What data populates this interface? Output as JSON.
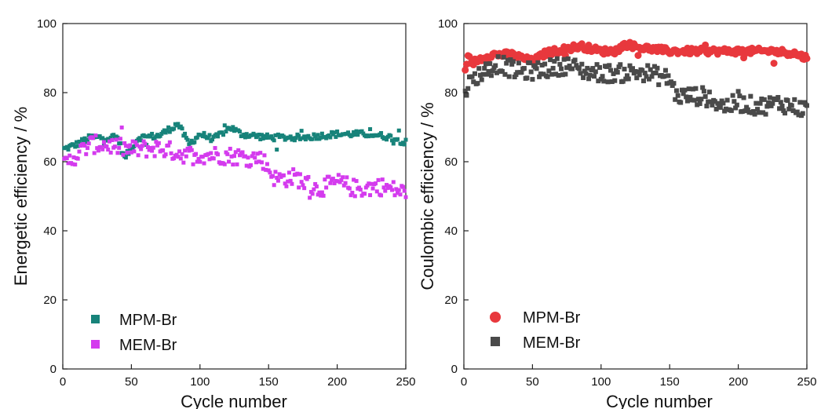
{
  "chart_data": [
    {
      "type": "scatter",
      "title": "",
      "xlabel": "Cycle number",
      "ylabel": "Energetic efficiency / %",
      "xlim": [
        0,
        250
      ],
      "ylim": [
        0,
        100
      ],
      "xticks": [
        "0",
        "50",
        "100",
        "150",
        "200",
        "250"
      ],
      "yticks": [
        "0",
        "20",
        "40",
        "60",
        "80",
        "100"
      ],
      "grid": false,
      "legend_position": "bottom-left",
      "series": [
        {
          "name": "MPM-Br",
          "color": "#17837A",
          "marker": "square",
          "anchors": [
            [
              0,
              63.5
            ],
            [
              10,
              65
            ],
            [
              20,
              67
            ],
            [
              40,
              67
            ],
            [
              45,
              61
            ],
            [
              50,
              64
            ],
            [
              55,
              67
            ],
            [
              70,
              67.5
            ],
            [
              84,
              71
            ],
            [
              92,
              65
            ],
            [
              100,
              68
            ],
            [
              110,
              66.5
            ],
            [
              122,
              70
            ],
            [
              130,
              68
            ],
            [
              150,
              67
            ],
            [
              175,
              67
            ],
            [
              200,
              68
            ],
            [
              225,
              68
            ],
            [
              240,
              67
            ],
            [
              250,
              65.5
            ]
          ]
        },
        {
          "name": "MEM-Br",
          "color": "#D43BEE",
          "marker": "square",
          "anchors": [
            [
              0,
              58.5
            ],
            [
              10,
              62
            ],
            [
              20,
              65
            ],
            [
              30,
              65
            ],
            [
              50,
              63.5
            ],
            [
              70,
              64
            ],
            [
              90,
              62
            ],
            [
              110,
              62
            ],
            [
              130,
              61.5
            ],
            [
              145,
              61
            ],
            [
              155,
              55
            ],
            [
              170,
              55.5
            ],
            [
              185,
              52
            ],
            [
              200,
              54
            ],
            [
              215,
              52
            ],
            [
              230,
              53
            ],
            [
              250,
              51
            ]
          ]
        }
      ]
    },
    {
      "type": "scatter",
      "title": "",
      "xlabel": "Cycle number",
      "ylabel": "Coulombic efficiency / %",
      "xlim": [
        0,
        250
      ],
      "ylim": [
        0,
        100
      ],
      "xticks": [
        "0",
        "50",
        "100",
        "150",
        "200",
        "250"
      ],
      "yticks": [
        "0",
        "20",
        "40",
        "60",
        "80",
        "100"
      ],
      "grid": false,
      "legend_position": "bottom-left",
      "series": [
        {
          "name": "MPM-Br",
          "color": "#E8383D",
          "marker": "circle",
          "anchors": [
            [
              0,
              87
            ],
            [
              10,
              89.5
            ],
            [
              20,
              91
            ],
            [
              35,
              91
            ],
            [
              50,
              89
            ],
            [
              60,
              91.5
            ],
            [
              85,
              93.5
            ],
            [
              100,
              92
            ],
            [
              110,
              92
            ],
            [
              118,
              94
            ],
            [
              130,
              93
            ],
            [
              150,
              92
            ],
            [
              175,
              92
            ],
            [
              200,
              92
            ],
            [
              225,
              92
            ],
            [
              240,
              91.5
            ],
            [
              250,
              90
            ]
          ]
        },
        {
          "name": "MEM-Br",
          "color": "#4A4A4A",
          "marker": "square",
          "anchors": [
            [
              0,
              81
            ],
            [
              10,
              85
            ],
            [
              25,
              88.5
            ],
            [
              40,
              86
            ],
            [
              55,
              86.5
            ],
            [
              75,
              88
            ],
            [
              90,
              86
            ],
            [
              110,
              85.5
            ],
            [
              130,
              86
            ],
            [
              150,
              84
            ],
            [
              155,
              79
            ],
            [
              175,
              79
            ],
            [
              190,
              76
            ],
            [
              200,
              77
            ],
            [
              215,
              76
            ],
            [
              230,
              77
            ],
            [
              250,
              75
            ]
          ]
        }
      ]
    }
  ]
}
